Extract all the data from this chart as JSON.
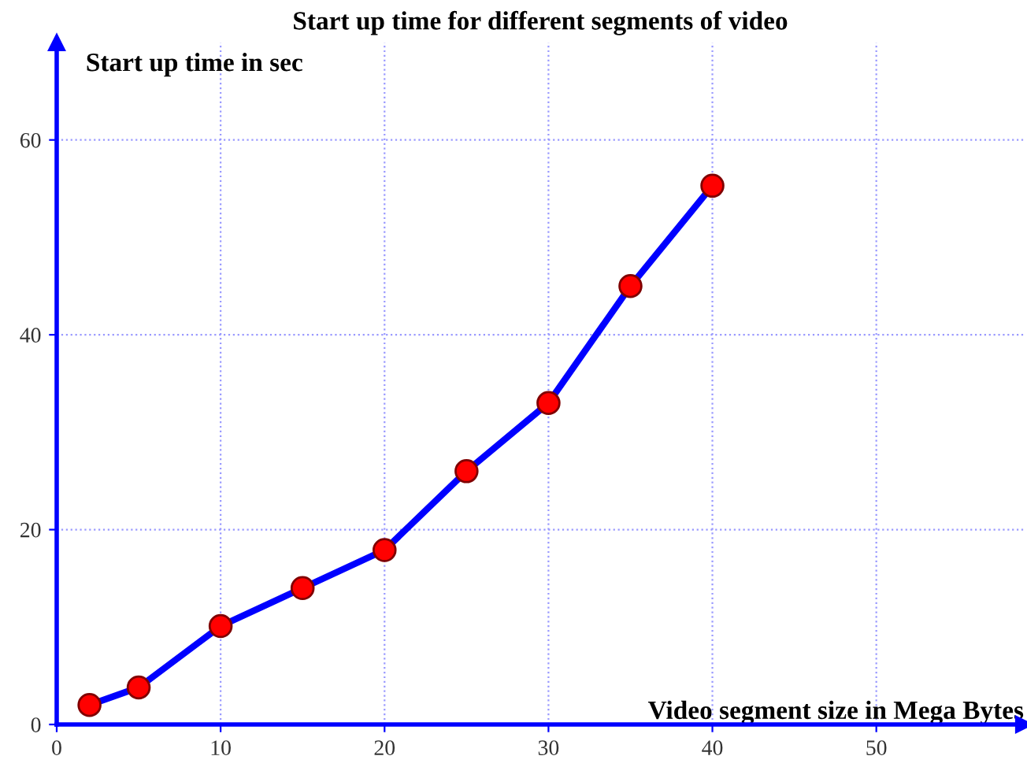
{
  "chart_data": {
    "type": "line",
    "title": "Start up time for different segments of video",
    "xlabel": "Video segment size in Mega Bytes",
    "ylabel": "Start up time in sec",
    "x": [
      2,
      5,
      10,
      15,
      20,
      25,
      30,
      35,
      40
    ],
    "series": [
      {
        "color": "#0000ff",
        "values": [
          2,
          3.8,
          10.1,
          14,
          17.9,
          26,
          33,
          45,
          55.3
        ]
      }
    ],
    "xlim": [
      0,
      59
    ],
    "ylim": [
      0,
      70
    ],
    "xticks": [
      0,
      10,
      20,
      30,
      40,
      50
    ],
    "yticks": [
      0,
      20,
      40,
      60
    ],
    "grid": true,
    "marker": "circle",
    "line_style": "solid"
  }
}
